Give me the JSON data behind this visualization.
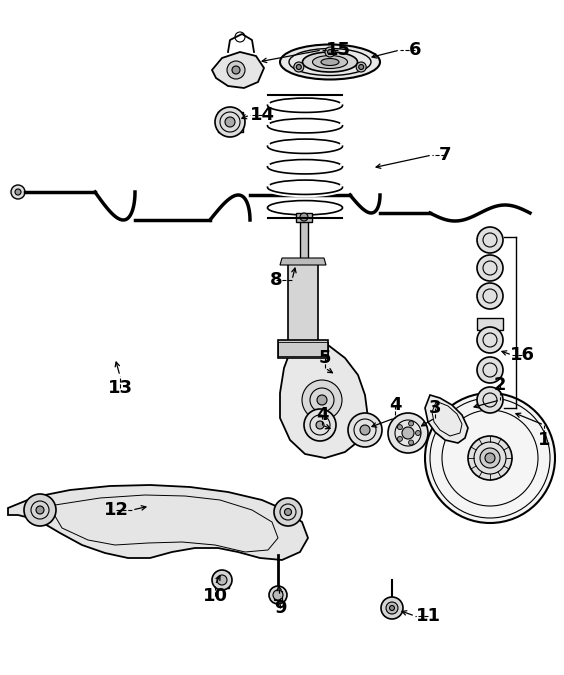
{
  "background_color": "#ffffff",
  "line_color": "#000000",
  "figsize": [
    5.64,
    6.75
  ],
  "dpi": 100
}
